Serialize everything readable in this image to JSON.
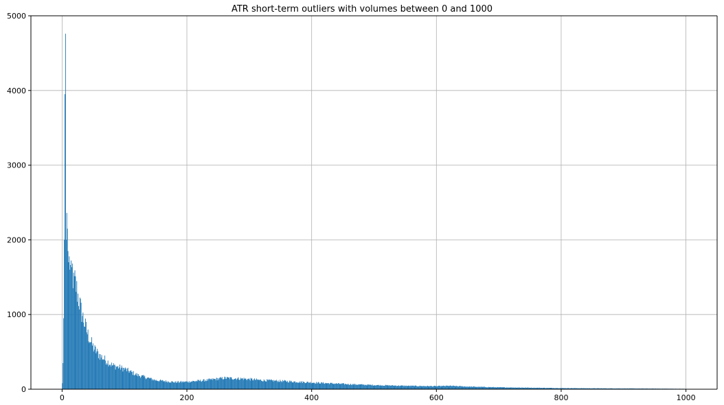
{
  "chart_data": {
    "type": "bar",
    "title": "ATR short-term outliers with volumes between 0 and 1000",
    "xlabel": "",
    "ylabel": "",
    "xlim": [
      -50,
      1050
    ],
    "ylim": [
      0,
      5000
    ],
    "grid": true,
    "bar_color": "#1f77b4",
    "x_ticks": [
      0,
      200,
      400,
      600,
      800,
      1000
    ],
    "x_tick_labels": [
      "0",
      "200",
      "400",
      "600",
      "800",
      "1000"
    ],
    "y_ticks": [
      0,
      1000,
      2000,
      3000,
      4000,
      5000
    ],
    "y_tick_labels": [
      "0",
      "1000",
      "2000",
      "3000",
      "4000",
      "5000"
    ],
    "bin_width": 1,
    "histogram_profile_keypoints": {
      "x": [
        0,
        1,
        2,
        3,
        4,
        5,
        6,
        7,
        8,
        9,
        10,
        12,
        14,
        16,
        18,
        20,
        25,
        30,
        40,
        50,
        60,
        80,
        100,
        120,
        150,
        180,
        200,
        230,
        260,
        290,
        320,
        350,
        400,
        450,
        500,
        550,
        600,
        620,
        650,
        700,
        750,
        800,
        850,
        900,
        950,
        1000
      ],
      "y": [
        80,
        350,
        950,
        2000,
        3950,
        4760,
        2000,
        2360,
        2150,
        1850,
        1700,
        1700,
        1500,
        1600,
        1400,
        1450,
        1250,
        1050,
        750,
        550,
        450,
        320,
        270,
        190,
        120,
        95,
        100,
        120,
        150,
        140,
        120,
        110,
        90,
        70,
        55,
        45,
        40,
        45,
        35,
        25,
        20,
        15,
        12,
        10,
        8,
        5
      ]
    }
  }
}
